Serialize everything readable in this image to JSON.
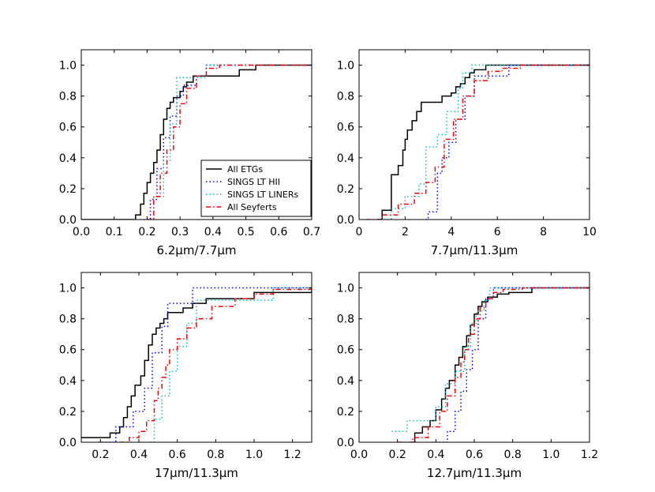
{
  "styles": {
    "All ETGs": {
      "color": "#000000",
      "dash": ""
    },
    "SINGS LT HII": {
      "color": "#0000ff",
      "dash": "1.5,3"
    },
    "SINGS LT LINERs": {
      "color": "#00bfbf",
      "dash": "1.5,3"
    },
    "All Seyferts": {
      "color": "#ff0000",
      "dash": "6,3,1.5,3"
    }
  },
  "legend": [
    "All ETGs",
    "SINGS LT HII",
    "SINGS LT LINERs",
    "All Seyferts"
  ],
  "chart_data": [
    {
      "type": "line",
      "subtype": "cumulative step",
      "xlabel": "6.2μm/7.7μm",
      "xlim": [
        0.0,
        0.7
      ],
      "ylim": [
        0.0,
        1.1
      ],
      "xticks": [
        "0.0",
        "0.1",
        "0.2",
        "0.3",
        "0.4",
        "0.5",
        "0.6",
        "0.7"
      ],
      "yticks": [
        "0.0",
        "0.2",
        "0.4",
        "0.6",
        "0.8",
        "1.0"
      ],
      "legend": true,
      "series": [
        {
          "name": "All ETGs",
          "x": [
            0.0,
            0.165,
            0.18,
            0.19,
            0.2,
            0.21,
            0.22,
            0.23,
            0.24,
            0.25,
            0.26,
            0.27,
            0.28,
            0.3,
            0.31,
            0.32,
            0.34,
            0.36,
            0.48,
            0.53,
            0.7
          ],
          "y": [
            0.0,
            0.03,
            0.1,
            0.17,
            0.24,
            0.3,
            0.37,
            0.45,
            0.55,
            0.65,
            0.72,
            0.76,
            0.79,
            0.83,
            0.86,
            0.89,
            0.93,
            0.93,
            0.97,
            1.0,
            1.0
          ]
        },
        {
          "name": "SINGS LT HII",
          "x": [
            0.19,
            0.21,
            0.23,
            0.25,
            0.27,
            0.29,
            0.31,
            0.35,
            0.38,
            0.7
          ],
          "y": [
            0.0,
            0.13,
            0.33,
            0.53,
            0.67,
            0.8,
            0.87,
            0.93,
            1.0,
            1.0
          ]
        },
        {
          "name": "SINGS LT LINERs",
          "x": [
            0.2,
            0.22,
            0.25,
            0.27,
            0.29,
            0.34,
            0.38,
            0.7
          ],
          "y": [
            0.0,
            0.15,
            0.38,
            0.62,
            0.92,
            0.92,
            1.0,
            1.0
          ]
        },
        {
          "name": "All Seyferts",
          "x": [
            0.2,
            0.22,
            0.24,
            0.26,
            0.28,
            0.3,
            0.32,
            0.35,
            0.38,
            0.42,
            0.7
          ],
          "y": [
            0.0,
            0.15,
            0.3,
            0.45,
            0.6,
            0.75,
            0.85,
            0.93,
            0.98,
            1.0,
            1.0
          ]
        }
      ]
    },
    {
      "type": "line",
      "subtype": "cumulative step",
      "xlabel": "7.7μm/11.3μm",
      "xlim": [
        0,
        10
      ],
      "ylim": [
        0.0,
        1.1
      ],
      "xticks": [
        "0",
        "2",
        "4",
        "6",
        "8",
        "10"
      ],
      "yticks": [
        "0.0",
        "0.2",
        "0.4",
        "0.6",
        "0.8",
        "1.0"
      ],
      "legend": false,
      "series": [
        {
          "name": "All ETGs",
          "x": [
            0.8,
            1.0,
            1.4,
            1.7,
            1.9,
            2.0,
            2.1,
            2.3,
            2.5,
            2.7,
            3.0,
            3.6,
            4.0,
            4.2,
            4.4,
            4.6,
            4.8,
            5.0,
            5.5,
            10.0
          ],
          "y": [
            0.0,
            0.06,
            0.29,
            0.35,
            0.45,
            0.52,
            0.58,
            0.64,
            0.7,
            0.76,
            0.76,
            0.8,
            0.82,
            0.86,
            0.88,
            0.92,
            0.95,
            0.97,
            1.0,
            1.0
          ]
        },
        {
          "name": "SINGS LT HII",
          "x": [
            2.9,
            3.0,
            3.4,
            3.6,
            3.9,
            4.2,
            4.6,
            5.0,
            5.5,
            6.5,
            10.0
          ],
          "y": [
            0.0,
            0.05,
            0.3,
            0.4,
            0.5,
            0.65,
            0.8,
            0.93,
            0.93,
            1.0,
            1.0
          ]
        },
        {
          "name": "SINGS LT LINERs",
          "x": [
            1.1,
            1.4,
            2.0,
            2.6,
            2.9,
            3.4,
            3.8,
            4.3,
            4.5,
            4.9,
            10.0
          ],
          "y": [
            0.0,
            0.07,
            0.15,
            0.23,
            0.47,
            0.55,
            0.7,
            0.85,
            0.95,
            1.0,
            1.0
          ]
        },
        {
          "name": "All Seyferts",
          "x": [
            0.3,
            1.0,
            1.7,
            2.4,
            2.9,
            3.3,
            3.7,
            4.1,
            4.5,
            5.0,
            5.6,
            6.2,
            7.0,
            10.0
          ],
          "y": [
            0.0,
            0.03,
            0.1,
            0.17,
            0.24,
            0.34,
            0.52,
            0.65,
            0.8,
            0.9,
            0.96,
            0.98,
            1.0,
            1.0
          ]
        }
      ]
    },
    {
      "type": "line",
      "subtype": "cumulative step",
      "xlabel": "17μm/11.3μm",
      "xlim": [
        0.1,
        1.3
      ],
      "ylim": [
        0.0,
        1.1
      ],
      "xticks": [
        "0.2",
        "0.4",
        "0.6",
        "0.8",
        "1.0",
        "1.2"
      ],
      "yticks": [
        "0.0",
        "0.2",
        "0.4",
        "0.6",
        "0.8",
        "1.0"
      ],
      "legend": false,
      "series": [
        {
          "name": "All ETGs",
          "x": [
            0.1,
            0.16,
            0.25,
            0.3,
            0.32,
            0.34,
            0.36,
            0.38,
            0.41,
            0.43,
            0.45,
            0.47,
            0.49,
            0.51,
            0.53,
            0.55,
            0.59,
            0.63,
            0.68,
            0.75,
            1.0,
            1.3
          ],
          "y": [
            0.03,
            0.03,
            0.06,
            0.1,
            0.16,
            0.23,
            0.3,
            0.37,
            0.43,
            0.53,
            0.63,
            0.7,
            0.74,
            0.77,
            0.8,
            0.84,
            0.84,
            0.87,
            0.9,
            0.93,
            0.97,
            1.0
          ]
        },
        {
          "name": "SINGS LT HII",
          "x": [
            0.19,
            0.28,
            0.37,
            0.43,
            0.47,
            0.52,
            0.55,
            0.68,
            1.3
          ],
          "y": [
            0.0,
            0.1,
            0.2,
            0.35,
            0.58,
            0.75,
            0.9,
            1.0,
            1.0
          ]
        },
        {
          "name": "SINGS LT LINERs",
          "x": [
            0.46,
            0.48,
            0.52,
            0.56,
            0.6,
            0.65,
            0.7,
            0.9,
            1.1,
            1.3
          ],
          "y": [
            0.0,
            0.15,
            0.3,
            0.46,
            0.62,
            0.77,
            0.92,
            0.92,
            1.0,
            1.0
          ]
        },
        {
          "name": "All Seyferts",
          "x": [
            0.3,
            0.35,
            0.4,
            0.44,
            0.48,
            0.5,
            0.52,
            0.54,
            0.56,
            0.6,
            0.65,
            0.7,
            0.78,
            0.9,
            1.0,
            1.1,
            1.3
          ],
          "y": [
            0.0,
            0.03,
            0.07,
            0.14,
            0.27,
            0.35,
            0.42,
            0.5,
            0.6,
            0.67,
            0.74,
            0.8,
            0.88,
            0.93,
            0.96,
            0.99,
            1.0
          ]
        }
      ]
    },
    {
      "type": "line",
      "subtype": "cumulative step",
      "xlabel": "12.7μm/11.3μm",
      "xlim": [
        0.0,
        1.2
      ],
      "ylim": [
        0.0,
        1.1
      ],
      "xticks": [
        "0.0",
        "0.2",
        "0.4",
        "0.6",
        "0.8",
        "1.0",
        "1.2"
      ],
      "yticks": [
        "0.0",
        "0.2",
        "0.4",
        "0.6",
        "0.8",
        "1.0"
      ],
      "legend": false,
      "series": [
        {
          "name": "All ETGs",
          "x": [
            0.27,
            0.29,
            0.33,
            0.37,
            0.4,
            0.43,
            0.45,
            0.47,
            0.5,
            0.52,
            0.54,
            0.56,
            0.58,
            0.6,
            0.62,
            0.64,
            0.67,
            0.72,
            0.78,
            0.9,
            1.2
          ],
          "y": [
            0.0,
            0.06,
            0.1,
            0.14,
            0.21,
            0.28,
            0.35,
            0.4,
            0.5,
            0.55,
            0.62,
            0.69,
            0.76,
            0.83,
            0.88,
            0.91,
            0.94,
            0.96,
            0.97,
            1.0,
            1.0
          ]
        },
        {
          "name": "SINGS LT HII",
          "x": [
            0.38,
            0.46,
            0.5,
            0.53,
            0.56,
            0.59,
            0.62,
            0.66,
            0.7,
            1.2
          ],
          "y": [
            0.0,
            0.07,
            0.2,
            0.33,
            0.47,
            0.6,
            0.8,
            0.93,
            1.0,
            1.0
          ]
        },
        {
          "name": "SINGS LT LINERs",
          "x": [
            0.17,
            0.25,
            0.4,
            0.45,
            0.5,
            0.55,
            0.58,
            0.61,
            0.65,
            0.68,
            1.2
          ],
          "y": [
            0.07,
            0.14,
            0.23,
            0.38,
            0.46,
            0.62,
            0.77,
            0.85,
            0.92,
            1.0,
            1.0
          ]
        },
        {
          "name": "All Seyferts",
          "x": [
            0.2,
            0.28,
            0.36,
            0.42,
            0.46,
            0.5,
            0.53,
            0.55,
            0.57,
            0.6,
            0.63,
            0.66,
            0.7,
            0.75,
            0.85,
            1.2
          ],
          "y": [
            0.0,
            0.03,
            0.1,
            0.2,
            0.3,
            0.42,
            0.52,
            0.6,
            0.7,
            0.8,
            0.87,
            0.93,
            0.97,
            0.99,
            1.0,
            1.0
          ]
        }
      ]
    }
  ]
}
